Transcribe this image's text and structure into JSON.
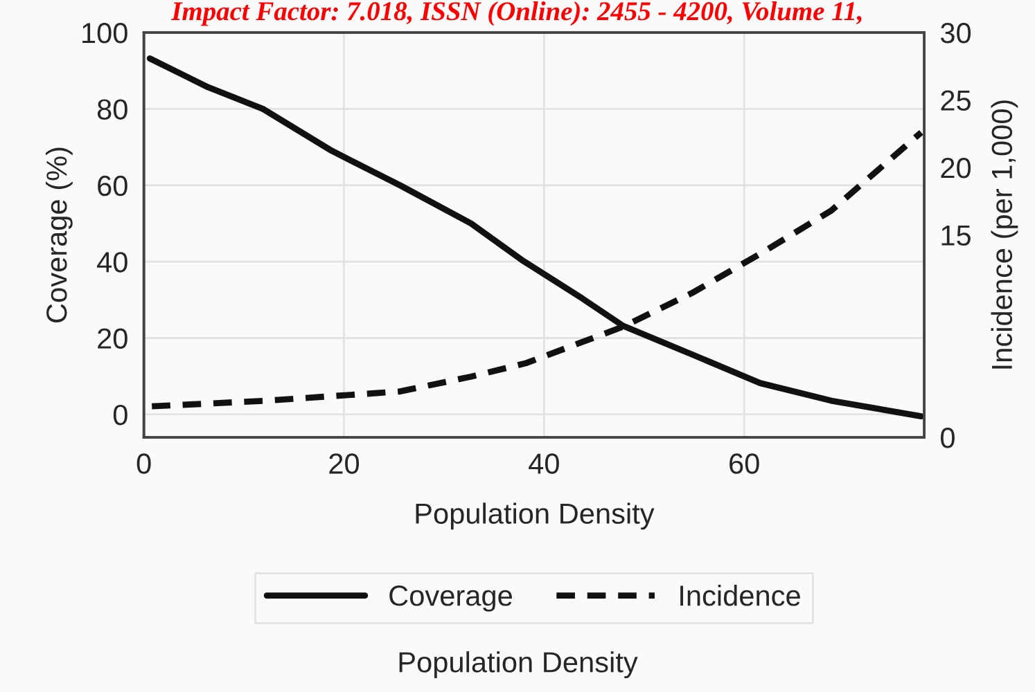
{
  "chart_data": {
    "type": "line",
    "xlabel": "Population Density",
    "ylabel": "Coverage (%)",
    "y2label": "Incidence (per 1,000)",
    "xlim": [
      0,
      78
    ],
    "xticks": [
      0,
      20,
      40,
      60
    ],
    "ylim": [
      -6,
      100
    ],
    "yticks": [
      0,
      20,
      40,
      60,
      80,
      100
    ],
    "y2lim": [
      0,
      30
    ],
    "y2ticks": [
      0,
      15,
      20,
      25,
      30
    ],
    "grid": true,
    "legend": "bottom",
    "marker": "none",
    "annotations": [
      "Impact Factor: 7.018, ISSN (Online): 2455 - 4200, Volume 11,",
      "Population Density"
    ],
    "series": [
      {
        "name": "Coverage",
        "color": "#111111",
        "line_style": "solid",
        "x": [
          0.6,
          6.4,
          11.9,
          18.8,
          25.6,
          32.7,
          37.8,
          43.8,
          47.9,
          54.8,
          61.6,
          68.7,
          77.7
        ],
        "values": [
          93.2,
          85.7,
          80,
          69,
          60,
          50,
          40.4,
          30.4,
          23.2,
          15.7,
          8.2,
          3.6,
          -0.5
        ]
      },
      {
        "name": "Incidence",
        "color": "#111111",
        "line_style": "dashed",
        "axis": "y2",
        "x": [
          0.8,
          11.9,
          25.6,
          32.7,
          38.2,
          47.9,
          54.8,
          61.6,
          68.7,
          77.7
        ],
        "values": [
          2.3,
          2.7,
          3.4,
          4.5,
          5.5,
          8.2,
          10.7,
          13.6,
          16.8,
          22.6
        ]
      }
    ]
  }
}
